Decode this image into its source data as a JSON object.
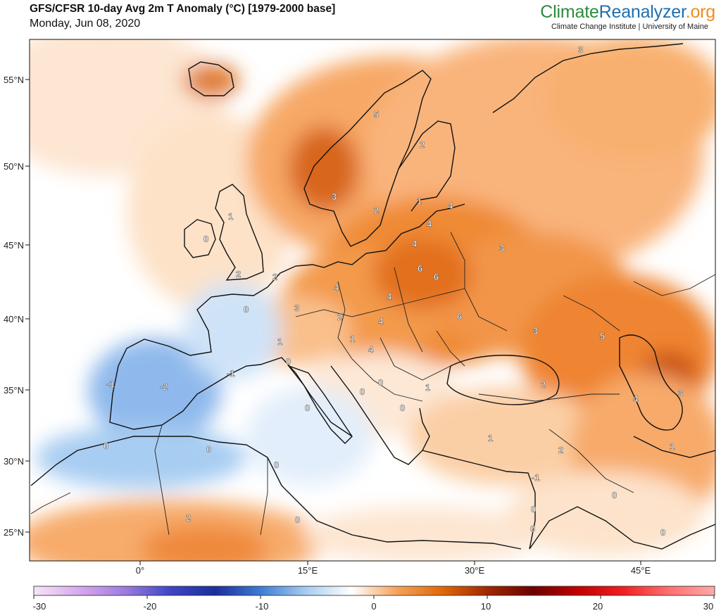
{
  "header": {
    "title": "GFS/CFSR 10-day Avg 2m T Anomaly (°C) [1979-2000 base]",
    "date": "Monday, Jun 08, 2020",
    "brand": {
      "part1": "Climate",
      "part2": "Reanalyzer",
      "part3": ".org"
    },
    "institution": "Climate Change Institute | University of Maine"
  },
  "map": {
    "lat_labels": [
      "55°N",
      "50°N",
      "45°N",
      "40°N",
      "35°N",
      "30°N",
      "25°N"
    ],
    "lon_labels": [
      "0°",
      "15°E",
      "30°E",
      "45°E"
    ],
    "contour_labels": [
      {
        "text": "3"
      },
      {
        "text": "5"
      },
      {
        "text": "2"
      },
      {
        "text": "3"
      },
      {
        "text": "2"
      },
      {
        "text": "1"
      },
      {
        "text": "4"
      },
      {
        "text": "4"
      },
      {
        "text": "4"
      },
      {
        "text": "1"
      },
      {
        "text": "0"
      },
      {
        "text": "2"
      },
      {
        "text": "2"
      },
      {
        "text": "3"
      },
      {
        "text": "6"
      },
      {
        "text": "6"
      },
      {
        "text": "4"
      },
      {
        "text": "4"
      },
      {
        "text": "3"
      },
      {
        "text": "0"
      },
      {
        "text": "3"
      },
      {
        "text": "2"
      },
      {
        "text": "4"
      },
      {
        "text": "6"
      },
      {
        "text": "1"
      },
      {
        "text": "1"
      },
      {
        "text": "4"
      },
      {
        "text": "0"
      },
      {
        "text": "-1"
      },
      {
        "text": "-1"
      },
      {
        "text": "-2"
      },
      {
        "text": "0"
      },
      {
        "text": "0"
      },
      {
        "text": "0"
      },
      {
        "text": "1"
      },
      {
        "text": "0"
      },
      {
        "text": "5"
      },
      {
        "text": "2"
      },
      {
        "text": "4"
      },
      {
        "text": "3"
      },
      {
        "text": "0"
      },
      {
        "text": "0"
      },
      {
        "text": "0"
      },
      {
        "text": "1"
      },
      {
        "text": "2"
      },
      {
        "text": "-1"
      },
      {
        "text": "1"
      },
      {
        "text": "0"
      },
      {
        "text": "2"
      },
      {
        "text": "0"
      },
      {
        "text": "0"
      },
      {
        "text": "0"
      },
      {
        "text": "0"
      }
    ]
  },
  "colorbar": {
    "ticks": [
      "-30",
      "-20",
      "-10",
      "0",
      "10",
      "20",
      "30"
    ],
    "stops": [
      "#f7e6f7",
      "#d8a8ee",
      "#9d7ce0",
      "#3f46c6",
      "#1b2f9c",
      "#3d7cd6",
      "#a8cdf0",
      "#ffffff",
      "#f6a25a",
      "#e06808",
      "#a02800",
      "#6b0000",
      "#c40000",
      "#f22020",
      "#ff7070",
      "#ffaaaa"
    ]
  },
  "colors": {
    "warm_light": "#fbd2aa",
    "warm_mid": "#f6a25a",
    "warm_strong": "#e06808",
    "warm_deep": "#a83e08",
    "cool_light": "#d6e8fa",
    "cool_mid": "#8db8ec",
    "neutral": "#ffffff"
  }
}
